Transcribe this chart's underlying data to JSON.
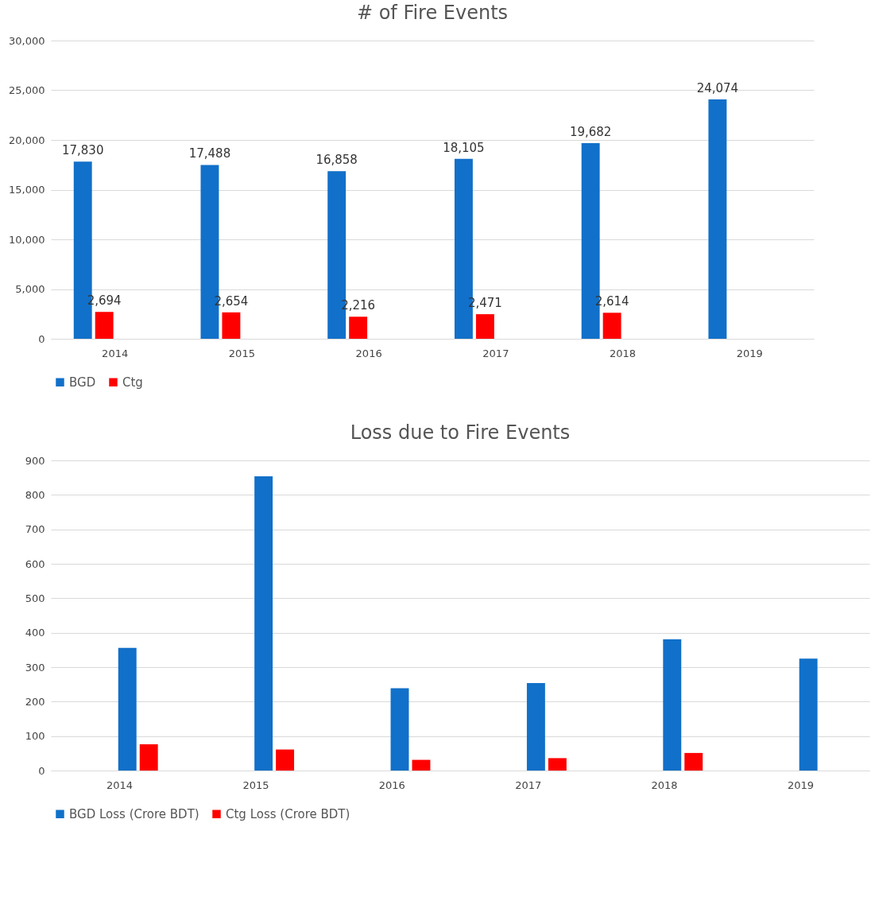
{
  "chart_data": [
    {
      "type": "bar",
      "title": "# of Fire Events",
      "categories": [
        "2014",
        "2015",
        "2016",
        "2017",
        "2018",
        "2019"
      ],
      "series": [
        {
          "name": "BGD",
          "color": "#1170c9",
          "values": [
            17830,
            17488,
            16858,
            18105,
            19682,
            24074
          ],
          "value_labels": [
            "17,830",
            "17,488",
            "16,858",
            "18,105",
            "19,682",
            "24,074"
          ]
        },
        {
          "name": "Ctg",
          "color": "#ff0000",
          "values": [
            2694,
            2654,
            2216,
            2471,
            2614,
            null
          ],
          "value_labels": [
            "2,694",
            "2,654",
            "2,216",
            "2,471",
            "2,614",
            null
          ]
        }
      ],
      "ylim": [
        0,
        30000
      ],
      "yticks": [
        0,
        {
          "value": 5000,
          "label": "5,000"
        },
        {
          "value": 10000,
          "label": "10,000"
        },
        {
          "value": 15000,
          "label": "15,000"
        },
        {
          "value": 20000,
          "label": "20,000"
        },
        {
          "value": 25000,
          "label": "25,000"
        },
        {
          "value": 30000,
          "label": "30,000"
        }
      ],
      "grid": "y",
      "legend": "bottom"
    },
    {
      "type": "bar",
      "title": "Loss due to Fire Events",
      "categories": [
        "2014",
        "2015",
        "2016",
        "2017",
        "2018",
        "2019"
      ],
      "series": [
        {
          "name": "BGD Loss (Crore BDT)",
          "color": "#1170c9",
          "values": [
            356,
            854,
            239,
            254,
            381,
            325
          ]
        },
        {
          "name": "Ctg Loss (Crore BDT)",
          "color": "#ff0000",
          "values": [
            76,
            61,
            31,
            36,
            51,
            null
          ]
        }
      ],
      "ylim": [
        0,
        900
      ],
      "yticks": [
        0,
        100,
        200,
        300,
        400,
        500,
        600,
        700,
        800,
        900
      ],
      "grid": "y",
      "legend": "bottom"
    }
  ]
}
